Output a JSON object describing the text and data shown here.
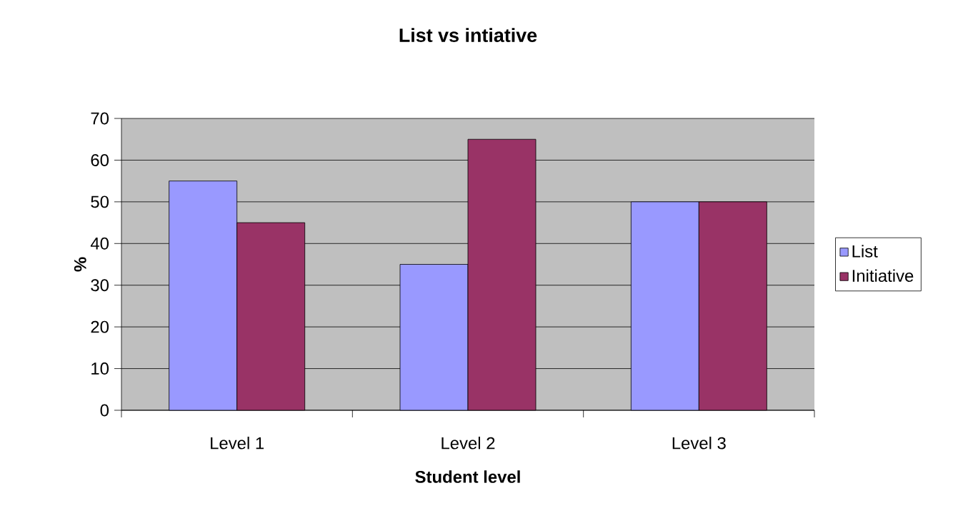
{
  "chart_data": {
    "type": "bar",
    "title": "List vs intiative",
    "xlabel": "Student level",
    "ylabel": "%",
    "categories": [
      "Level 1",
      "Level 2",
      "Level 3"
    ],
    "series": [
      {
        "name": "List",
        "color": "#9999ff",
        "values": [
          55,
          35,
          50
        ]
      },
      {
        "name": "Initiative",
        "color": "#993366",
        "values": [
          45,
          65,
          50
        ]
      }
    ],
    "ylim": [
      0,
      70
    ],
    "yticks": [
      0,
      10,
      20,
      30,
      40,
      50,
      60,
      70
    ],
    "grid": "y",
    "legend": "right"
  }
}
